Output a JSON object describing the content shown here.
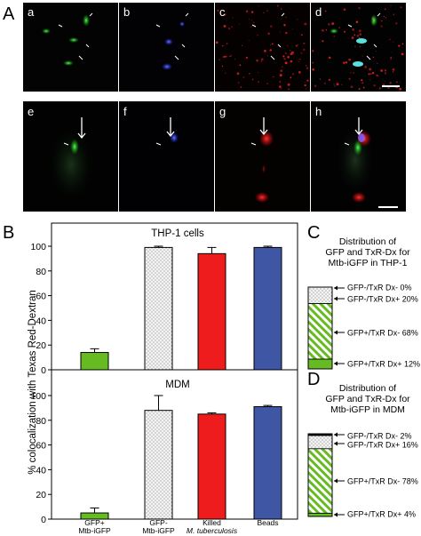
{
  "panel_labels": {
    "A": "A",
    "B": "B",
    "C": "C",
    "D": "D"
  },
  "micro_labels": [
    "a",
    "b",
    "c",
    "d",
    "e",
    "f",
    "g",
    "h"
  ],
  "colors": {
    "gfp_pos": "#66bb22",
    "gfp_neg": "#f4f4f4",
    "killed": "#ee1c1c",
    "beads": "#3f56a5",
    "stripe": "#66bb22",
    "black": "#000000"
  },
  "chart_data": [
    {
      "type": "bar",
      "title": "THP-1 cells",
      "ylabel": "% colocalization with Texas Red-Dextran",
      "ylim": [
        0,
        100
      ],
      "yticks": [
        0,
        20,
        40,
        60,
        80,
        100
      ],
      "categories": [
        "GFP+ Mtb-iGFP",
        "GFP- Mtb-iGFP",
        "Killed M. tuberculosis",
        "Beads"
      ],
      "values": [
        14,
        99,
        94,
        99
      ],
      "errors": [
        3,
        1,
        5,
        1
      ]
    },
    {
      "type": "bar",
      "title": "MDM",
      "ylabel": "% colocalization with Texas Red-Dextran",
      "ylim": [
        0,
        100
      ],
      "yticks": [
        0,
        20,
        40,
        60,
        80,
        100
      ],
      "categories": [
        "GFP+ Mtb-iGFP",
        "GFP- Mtb-iGFP",
        "Killed M. tuberculosis",
        "Beads"
      ],
      "values": [
        5,
        88,
        85,
        91
      ],
      "errors": [
        4,
        12,
        1,
        1
      ]
    },
    {
      "type": "bar",
      "stacked": true,
      "title": "Distribution of GFP and TxR-Dx for Mtb-iGFP in THP-1",
      "title_lines": [
        "Distribution of",
        "GFP and TxR-Dx for",
        "Mtb-iGFP in THP-1"
      ],
      "series": [
        {
          "name": "GFP+/TxR Dx+",
          "value": 12
        },
        {
          "name": "GFP+/TxR Dx-",
          "value": 68
        },
        {
          "name": "GFP-/TxR Dx+",
          "value": 20
        },
        {
          "name": "GFP-/TxR Dx-",
          "value": 0
        }
      ]
    },
    {
      "type": "bar",
      "stacked": true,
      "title": "Distribution of GFP and TxR-Dx for Mtb-iGFP in MDM",
      "title_lines": [
        "Distribution of",
        "GFP and TxR-Dx for",
        "Mtb-iGFP in MDM"
      ],
      "series": [
        {
          "name": "GFP+/TxR Dx+",
          "value": 4
        },
        {
          "name": "GFP+/TxR Dx-",
          "value": 78
        },
        {
          "name": "GFP-/TxR Dx+",
          "value": 16
        },
        {
          "name": "GFP-/TxR Dx-",
          "value": 2
        }
      ]
    }
  ],
  "x_labels": [
    [
      "GFP+",
      "Mtb-iGFP"
    ],
    [
      "GFP-",
      "Mtb-iGFP"
    ],
    [
      "Killed",
      "M. tuberculosis"
    ],
    [
      "Beads"
    ]
  ]
}
